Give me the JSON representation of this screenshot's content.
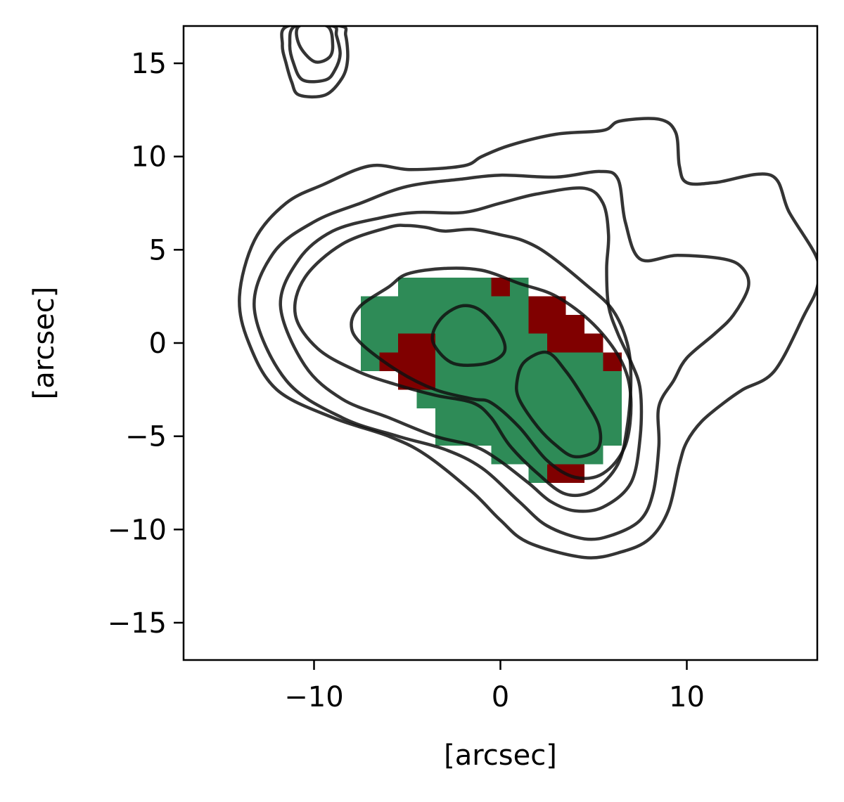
{
  "chart_data": {
    "type": "heatmap",
    "title": "",
    "xlabel": "[arcsec]",
    "ylabel": "[arcsec]",
    "xlim": [
      -17,
      17
    ],
    "ylim": [
      -17,
      17
    ],
    "xticks": [
      -10,
      0,
      10
    ],
    "xtick_labels": [
      "−10",
      "0",
      "10"
    ],
    "yticks": [
      -15,
      -10,
      -5,
      0,
      5,
      10,
      15
    ],
    "ytick_labels": [
      "−15",
      "−10",
      "−5",
      "0",
      "5",
      "10",
      "15"
    ],
    "grid": false,
    "pixel_size_arcsec": 1,
    "colors": {
      "green": "#2e8b57",
      "red": "#800000",
      "contour": "#111111"
    },
    "green_pixels": {
      "note_rows": "each entry: [y_center, x_start, x_end] in arcsec",
      "rows": [
        [
          3,
          -5,
          -1
        ],
        [
          3,
          1,
          1
        ],
        [
          2,
          -7,
          1
        ],
        [
          1,
          -7,
          1
        ],
        [
          0,
          -7,
          -6
        ],
        [
          0,
          -3,
          2
        ],
        [
          -1,
          -7,
          -6
        ],
        [
          -1,
          -3,
          5
        ],
        [
          -2,
          -4,
          6
        ],
        [
          -3,
          -4,
          6
        ],
        [
          -4,
          -3,
          6
        ],
        [
          -5,
          -3,
          6
        ],
        [
          -6,
          0,
          5
        ],
        [
          -7,
          2,
          2
        ]
      ]
    },
    "red_pixels": [
      [
        0,
        3
      ],
      [
        2,
        2
      ],
      [
        3,
        2
      ],
      [
        2,
        1
      ],
      [
        3,
        1
      ],
      [
        4,
        1
      ],
      [
        -5,
        0
      ],
      [
        -4,
        0
      ],
      [
        3,
        0
      ],
      [
        4,
        0
      ],
      [
        5,
        0
      ],
      [
        -6,
        -1
      ],
      [
        -5,
        -1
      ],
      [
        -4,
        -1
      ],
      [
        6,
        -1
      ],
      [
        -5,
        -2
      ],
      [
        -4,
        -2
      ],
      [
        3,
        -7
      ],
      [
        4,
        -7
      ]
    ],
    "contours": [
      {
        "level": 1,
        "points": [
          [
            -10.8,
            13.3
          ],
          [
            -9.4,
            13.3
          ],
          [
            -8.5,
            14.2
          ],
          [
            -8.2,
            15.2
          ],
          [
            -8.3,
            16.5
          ],
          [
            -8.6,
            17
          ],
          [
            -11.4,
            17
          ],
          [
            -11.7,
            16
          ],
          [
            -11.5,
            15
          ],
          [
            -11.2,
            14
          ]
        ]
      },
      {
        "level": 2,
        "points": [
          [
            -10.6,
            14.1
          ],
          [
            -9.4,
            14.1
          ],
          [
            -8.9,
            14.6
          ],
          [
            -8.6,
            15.5
          ],
          [
            -8.8,
            16.5
          ],
          [
            -9,
            17
          ],
          [
            -11,
            17
          ],
          [
            -11.3,
            16
          ],
          [
            -11.1,
            15
          ]
        ]
      },
      {
        "level": 3,
        "points": [
          [
            -10,
            15.1
          ],
          [
            -9.2,
            15.3
          ],
          [
            -9,
            16
          ],
          [
            -9.3,
            17
          ],
          [
            -10.8,
            17
          ],
          [
            -10.8,
            16
          ]
        ]
      },
      {
        "level": 4,
        "points": [
          [
            -14,
            2.5
          ],
          [
            -13.2,
            5.5
          ],
          [
            -11.5,
            7.5
          ],
          [
            -9.5,
            8.5
          ],
          [
            -7,
            9.5
          ],
          [
            -4.8,
            9.3
          ],
          [
            -2,
            9.5
          ],
          [
            -1,
            10
          ],
          [
            0.5,
            10.6
          ],
          [
            3,
            11.2
          ],
          [
            5.5,
            11.4
          ],
          [
            6.4,
            11.9
          ],
          [
            8.5,
            12
          ],
          [
            9.4,
            11.3
          ],
          [
            9.6,
            9.5
          ],
          [
            10,
            8.6
          ],
          [
            11.5,
            8.6
          ],
          [
            14.5,
            9
          ],
          [
            15.5,
            7
          ],
          [
            17,
            4.5
          ],
          [
            17,
            3
          ],
          [
            16.3,
            1.5
          ],
          [
            14.7,
            -1.5
          ],
          [
            13,
            -2.5
          ],
          [
            12,
            -3.2
          ],
          [
            10.8,
            -4.2
          ],
          [
            10,
            -5.3
          ],
          [
            9.6,
            -6.5
          ],
          [
            9,
            -9
          ],
          [
            8,
            -10.5
          ],
          [
            6.5,
            -11.2
          ],
          [
            4.5,
            -11.5
          ],
          [
            1.5,
            -10.7
          ],
          [
            0,
            -9.5
          ],
          [
            -1.5,
            -8
          ],
          [
            -4,
            -6
          ],
          [
            -6,
            -5
          ],
          [
            -9,
            -4
          ],
          [
            -12,
            -2.5
          ],
          [
            -13.5,
            0
          ]
        ]
      },
      {
        "level": 5,
        "points": [
          [
            -13.2,
            1.8
          ],
          [
            -12.2,
            4.8
          ],
          [
            -10,
            6.5
          ],
          [
            -7.5,
            7.5
          ],
          [
            -5,
            8.4
          ],
          [
            -2,
            8.8
          ],
          [
            0,
            9
          ],
          [
            3,
            8.9
          ],
          [
            5.3,
            9.2
          ],
          [
            6.3,
            8.8
          ],
          [
            6.7,
            6.5
          ],
          [
            7.5,
            4.5
          ],
          [
            9.5,
            4.7
          ],
          [
            12,
            4.5
          ],
          [
            13,
            4
          ],
          [
            13.3,
            3
          ],
          [
            12.5,
            1.5
          ],
          [
            11.5,
            0.5
          ],
          [
            10,
            -0.8
          ],
          [
            9.3,
            -2
          ],
          [
            8.5,
            -3.4
          ],
          [
            8.5,
            -5.5
          ],
          [
            8.2,
            -8
          ],
          [
            7.5,
            -9.5
          ],
          [
            6,
            -10.3
          ],
          [
            4.5,
            -10.5
          ],
          [
            2.5,
            -9.8
          ],
          [
            1,
            -8.5
          ],
          [
            -1,
            -6.7
          ],
          [
            -3,
            -5.7
          ],
          [
            -5.5,
            -5
          ],
          [
            -8.5,
            -4
          ],
          [
            -11.5,
            -2
          ]
        ]
      },
      {
        "level": 6,
        "points": [
          [
            -11.8,
            2
          ],
          [
            -10.8,
            4.5
          ],
          [
            -9,
            6
          ],
          [
            -6.5,
            6.7
          ],
          [
            -4.5,
            7
          ],
          [
            -2,
            7
          ],
          [
            0,
            7.5
          ],
          [
            2,
            8
          ],
          [
            4.5,
            8.3
          ],
          [
            5.5,
            7.5
          ],
          [
            5.8,
            5.8
          ],
          [
            5.7,
            4
          ],
          [
            5.8,
            2
          ],
          [
            6.3,
            0.5
          ],
          [
            7,
            -1
          ],
          [
            7.5,
            -2.5
          ],
          [
            7.5,
            -5
          ],
          [
            7,
            -7.5
          ],
          [
            5.5,
            -8.8
          ],
          [
            4,
            -9
          ],
          [
            2.7,
            -8.5
          ],
          [
            1.5,
            -7.5
          ],
          [
            -0.2,
            -6.2
          ],
          [
            -1.5,
            -5.5
          ],
          [
            -3.5,
            -5
          ],
          [
            -6,
            -4
          ],
          [
            -8.5,
            -3
          ],
          [
            -10.5,
            -1.2
          ]
        ]
      },
      {
        "level": 7,
        "points": [
          [
            -11,
            1.5
          ],
          [
            -10.5,
            3.5
          ],
          [
            -8.5,
            5.3
          ],
          [
            -6,
            6.2
          ],
          [
            -5,
            6.3
          ],
          [
            -4,
            6.2
          ],
          [
            -3,
            6
          ],
          [
            -1.5,
            6.1
          ],
          [
            0,
            5.8
          ],
          [
            1.2,
            5.5
          ],
          [
            2.5,
            4.8
          ],
          [
            4.5,
            3.2
          ],
          [
            6,
            1.8
          ],
          [
            6.8,
            0
          ],
          [
            7,
            -2
          ],
          [
            6.8,
            -4.5
          ],
          [
            6.3,
            -6.5
          ],
          [
            5,
            -7.9
          ],
          [
            3.5,
            -8.1
          ],
          [
            2,
            -7
          ],
          [
            0.5,
            -5.5
          ],
          [
            -0.5,
            -4
          ],
          [
            -1.5,
            -3.2
          ],
          [
            -3.5,
            -2.8
          ],
          [
            -5.7,
            -2.2
          ],
          [
            -7.7,
            -1.5
          ],
          [
            -9.8,
            -0.3
          ]
        ]
      },
      {
        "level": 8,
        "points": [
          [
            -8,
            1
          ],
          [
            -7.5,
            2
          ],
          [
            -6,
            3
          ],
          [
            -5,
            3.7
          ],
          [
            -3,
            4
          ],
          [
            -1,
            3.9
          ],
          [
            1,
            3.2
          ],
          [
            3,
            2.5
          ],
          [
            5,
            1
          ],
          [
            6.5,
            -1
          ],
          [
            7,
            -3
          ],
          [
            6.7,
            -5.5
          ],
          [
            5.5,
            -7
          ],
          [
            4,
            -7.2
          ],
          [
            2.5,
            -6.3
          ],
          [
            1,
            -4.5
          ],
          [
            -0.5,
            -3.2
          ],
          [
            -1.5,
            -3
          ],
          [
            -3.5,
            -2.5
          ],
          [
            -5.5,
            -1.5
          ],
          [
            -7.5,
            0
          ]
        ]
      },
      {
        "level": 9,
        "points": [
          [
            -2,
            2
          ],
          [
            -1,
            1.7
          ],
          [
            0,
            0.5
          ],
          [
            0.2,
            -0.5
          ],
          [
            -0.8,
            -1.1
          ],
          [
            -2.5,
            -1.1
          ],
          [
            -3.5,
            -0.2
          ],
          [
            -3.6,
            0.6
          ],
          [
            -3,
            1.5
          ]
        ]
      },
      {
        "level": 10,
        "points": [
          [
            2.5,
            -0.5
          ],
          [
            3.5,
            -1.5
          ],
          [
            4.5,
            -3
          ],
          [
            5.3,
            -4.5
          ],
          [
            5.2,
            -5.7
          ],
          [
            4,
            -6.1
          ],
          [
            3,
            -5.5
          ],
          [
            2,
            -4.5
          ],
          [
            1,
            -3
          ],
          [
            0.9,
            -2
          ],
          [
            1.3,
            -1
          ]
        ]
      }
    ]
  }
}
